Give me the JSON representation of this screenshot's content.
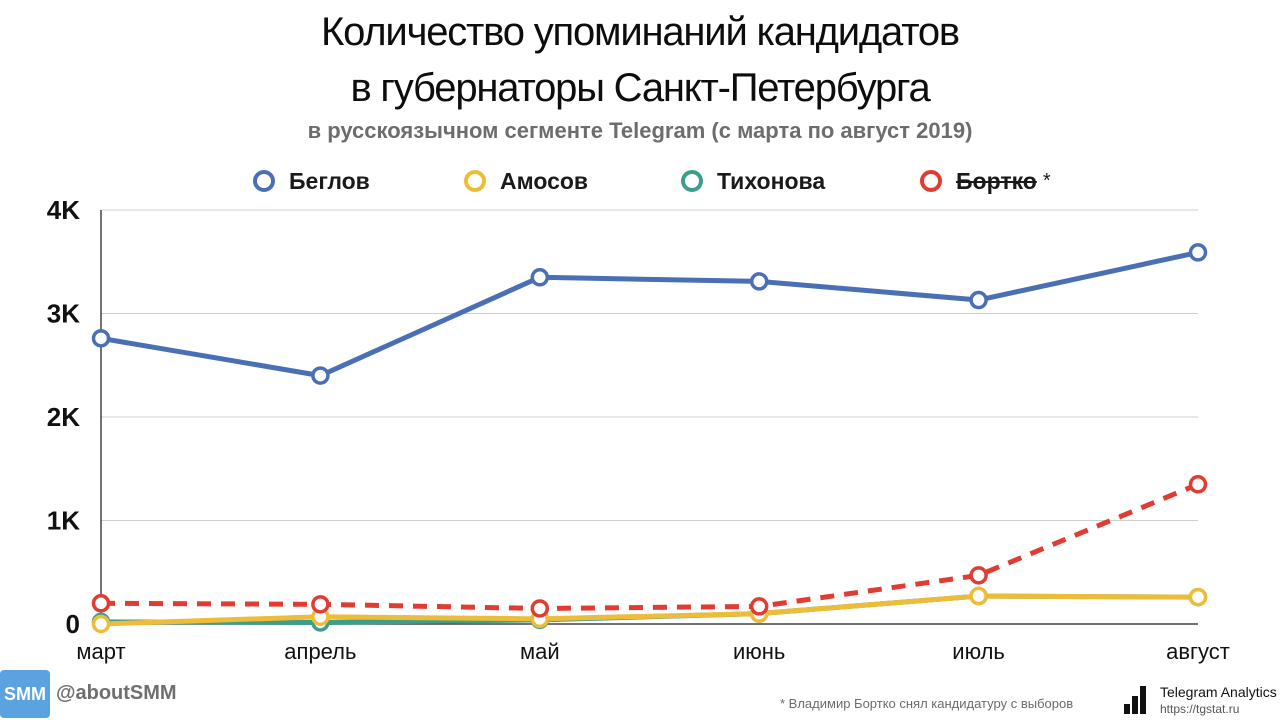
{
  "title_line1": "Количество упоминаний кандидатов",
  "title_line2": "в губернаторы Санкт-Петербурга",
  "subtitle": "в русскоязычном сегменте Telegram (с марта по август 2019)",
  "legend": [
    {
      "label": "Беглов",
      "color": "#4a6fb5",
      "strike": false,
      "note": ""
    },
    {
      "label": "Амосов",
      "color": "#edbd3a",
      "strike": false,
      "note": ""
    },
    {
      "label": "Тихонова",
      "color": "#3e9e8c",
      "strike": false,
      "note": ""
    },
    {
      "label": "Бортко",
      "color": "#e03c31",
      "strike": true,
      "note": "*"
    }
  ],
  "chart_data": {
    "type": "line",
    "categories": [
      "март",
      "апрель",
      "май",
      "июнь",
      "июль",
      "август"
    ],
    "y_ticks": [
      0,
      1000,
      2000,
      3000,
      4000
    ],
    "y_tick_labels": [
      "0",
      "1K",
      "2K",
      "3K",
      "4K"
    ],
    "ylim": [
      0,
      4000
    ],
    "grid": true,
    "series": [
      {
        "name": "Тихонова",
        "color": "#3e9e8c",
        "dashed": false,
        "values": [
          20,
          15,
          40,
          100,
          270,
          260
        ]
      },
      {
        "name": "Амосов",
        "color": "#edbd3a",
        "dashed": false,
        "values": [
          0,
          70,
          50,
          100,
          270,
          260
        ]
      },
      {
        "name": "Бортко",
        "color": "#e03c31",
        "dashed": true,
        "values": [
          200,
          190,
          150,
          170,
          470,
          1350
        ]
      },
      {
        "name": "Беглов",
        "color": "#4a6fb5",
        "dashed": false,
        "values": [
          2760,
          2400,
          3350,
          3310,
          3130,
          3590
        ]
      }
    ]
  },
  "footer": {
    "badge": "SMM",
    "handle": "@aboutSMM",
    "footnote": "* Владимир Бортко снял кандидатуру с выборов",
    "brand_name": "Telegram Analytics",
    "brand_url": "https://tgstat.ru"
  }
}
